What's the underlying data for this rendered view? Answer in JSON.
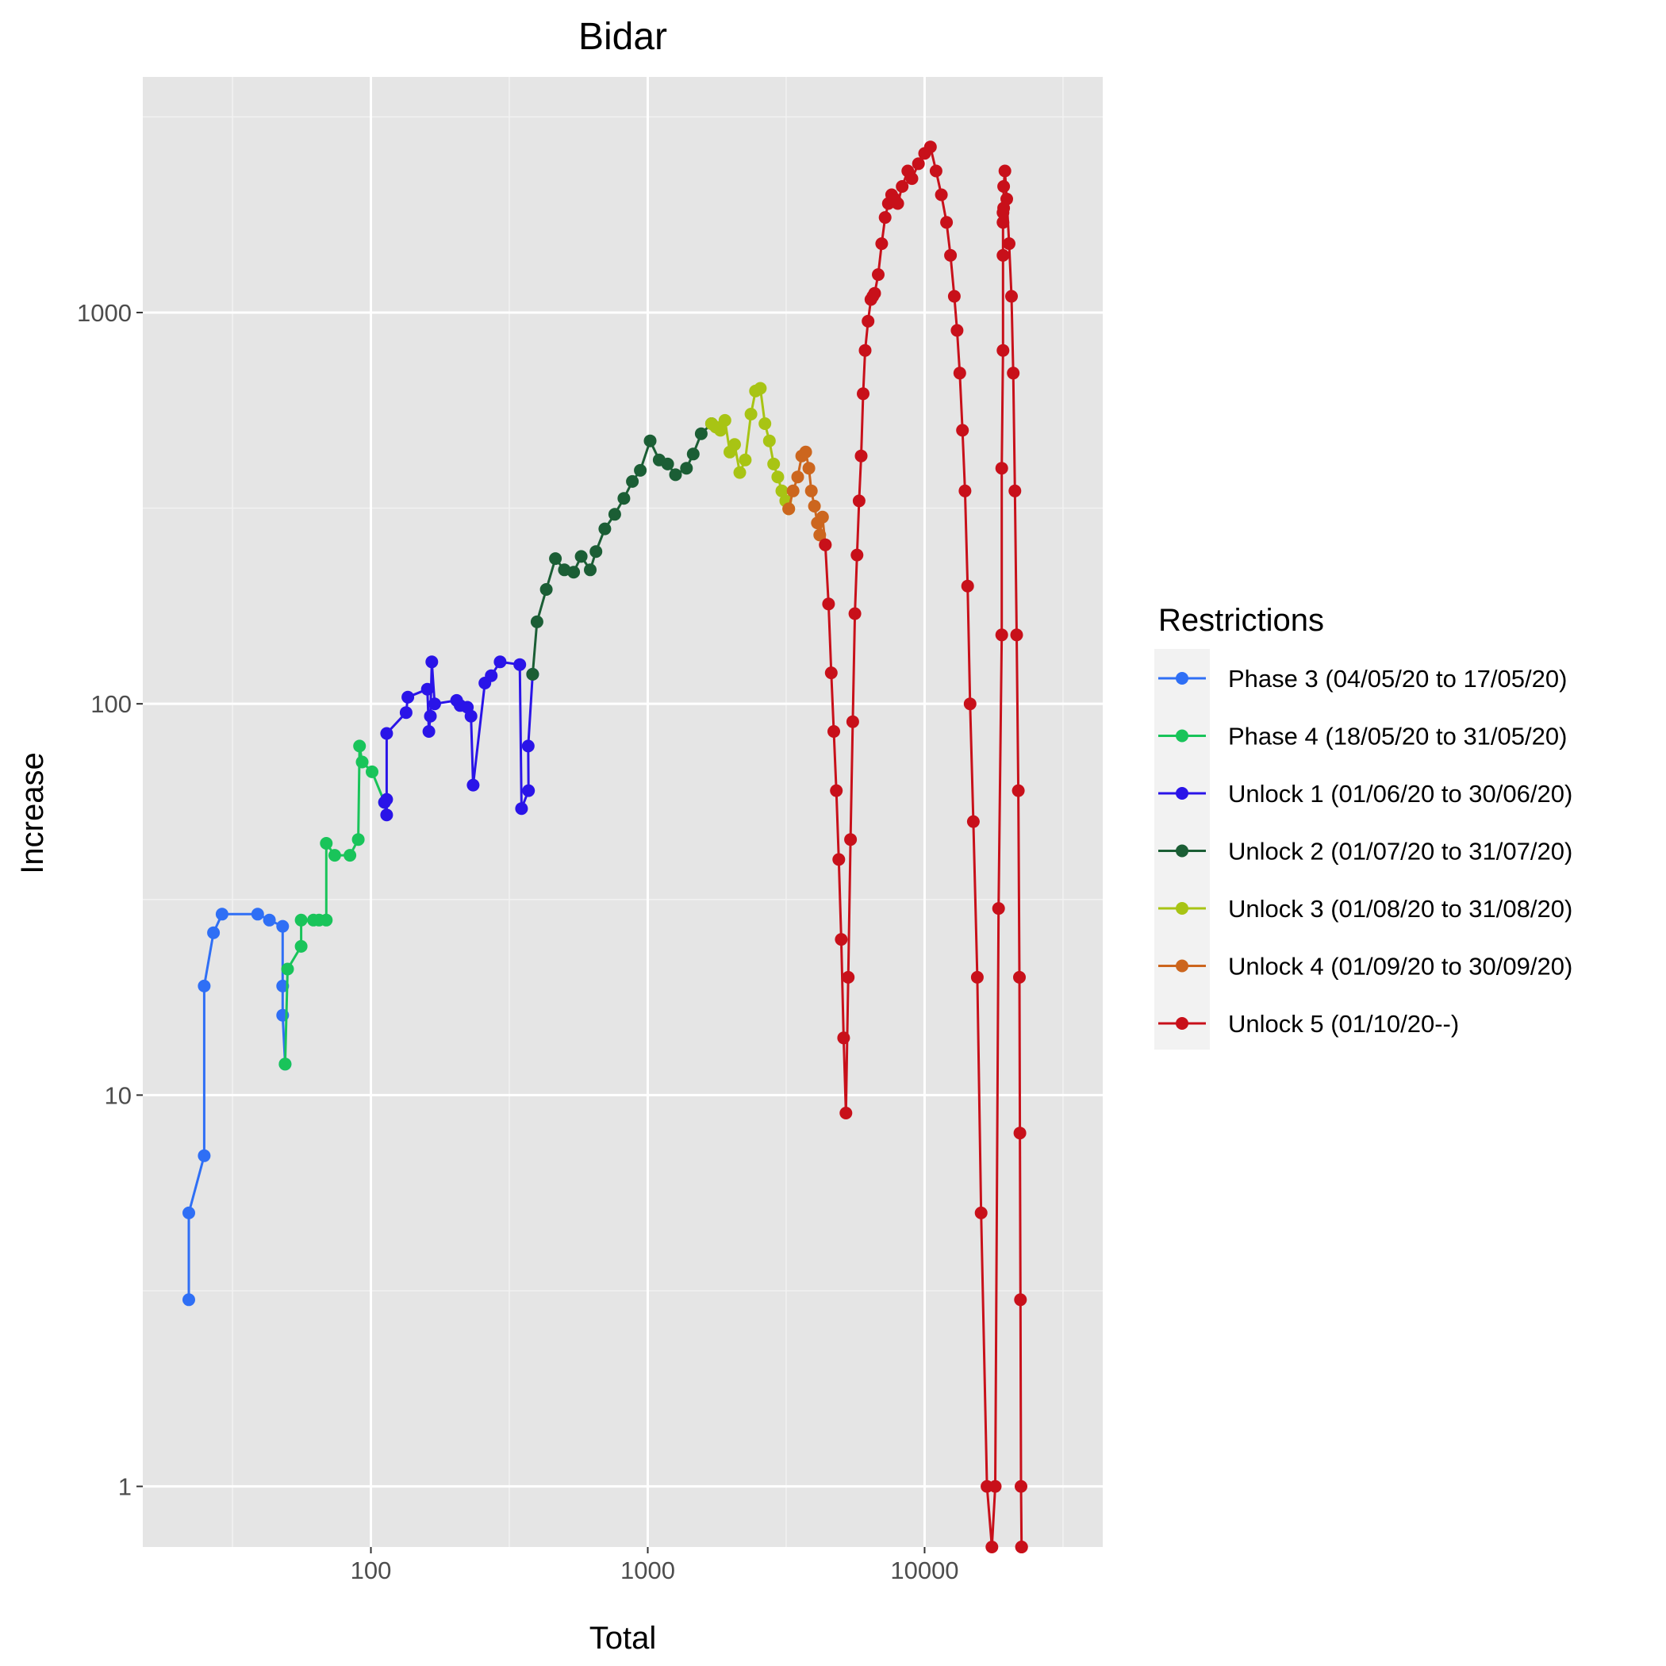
{
  "chart_data": {
    "type": "line",
    "title": "Bidar",
    "xlabel": "Total",
    "ylabel": "Increase",
    "x_scale": "log10",
    "y_scale": "log10",
    "xlim": [
      15,
      44000
    ],
    "ylim": [
      0.7,
      4000
    ],
    "x_ticks": [
      100,
      1000,
      10000
    ],
    "x_tick_labels": [
      "100",
      "1000",
      "10000"
    ],
    "y_ticks": [
      1,
      10,
      100,
      1000
    ],
    "y_tick_labels": [
      "1",
      "10",
      "100",
      "1000"
    ],
    "grid": true,
    "background": "#e5e5e5",
    "legend": {
      "title": "Restrictions",
      "position": "right"
    },
    "series": [
      {
        "name": "Phase 3 (04/05/20 to 17/05/20)",
        "color": "#2f6ff5",
        "x": [
          22,
          22,
          25,
          25,
          27,
          29,
          39,
          43,
          48,
          48,
          48,
          49
        ],
        "y": [
          3,
          5,
          7,
          19,
          26,
          29,
          29,
          28,
          27,
          19,
          16,
          12
        ]
      },
      {
        "name": "Phase 4 (18/05/20 to 31/05/20)",
        "color": "#19c45a",
        "x": [
          49,
          50,
          56,
          56,
          62,
          65,
          69,
          69,
          74,
          84,
          90,
          91,
          93,
          101,
          112
        ],
        "y": [
          12,
          21,
          24,
          28,
          28,
          28,
          28,
          44,
          41,
          41,
          45,
          78,
          71,
          67,
          56
        ]
      },
      {
        "name": "Unlock 1 (01/06/20 to 30/06/20)",
        "color": "#2a14e8",
        "x": [
          112,
          114,
          114,
          114,
          134,
          136,
          160,
          162,
          164,
          166,
          170,
          204,
          210,
          223,
          230,
          234,
          258,
          272,
          293,
          345,
          350,
          371,
          370,
          384
        ],
        "y": [
          56,
          52,
          57,
          84,
          95,
          104,
          109,
          85,
          93,
          128,
          100,
          102,
          99,
          98,
          93,
          62,
          113,
          118,
          128,
          126,
          54,
          60,
          78,
          119
        ]
      },
      {
        "name": "Unlock 2 (01/07/20 to 31/07/20)",
        "color": "#1b5e35",
        "x": [
          384,
          398,
          430,
          464,
          500,
          540,
          575,
          620,
          650,
          700,
          760,
          820,
          880,
          940,
          1020,
          1100,
          1180,
          1260,
          1380,
          1460,
          1560,
          1700
        ],
        "y": [
          119,
          162,
          196,
          235,
          220,
          217,
          238,
          220,
          245,
          280,
          305,
          335,
          370,
          395,
          470,
          420,
          410,
          385,
          400,
          435,
          490,
          520
        ]
      },
      {
        "name": "Unlock 3 (01/08/20 to 31/08/20)",
        "color": "#a8c414",
        "x": [
          1700,
          1760,
          1830,
          1900,
          1980,
          2060,
          2150,
          2250,
          2360,
          2450,
          2550,
          2650,
          2750,
          2850,
          2950,
          3050,
          3150,
          3230
        ],
        "y": [
          520,
          510,
          500,
          530,
          440,
          460,
          390,
          420,
          550,
          630,
          640,
          520,
          470,
          410,
          380,
          350,
          330,
          315
        ]
      },
      {
        "name": "Unlock 4 (01/09/20 to 30/09/20)",
        "color": "#cc661e",
        "x": [
          3230,
          3350,
          3480,
          3600,
          3720,
          3820,
          3900,
          4000,
          4100,
          4180,
          4280,
          4380
        ],
        "y": [
          315,
          350,
          380,
          430,
          440,
          400,
          350,
          320,
          290,
          270,
          300,
          255
        ]
      },
      {
        "name": "Unlock 5 (01/10/20--)",
        "color": "#c8101a",
        "x": [
          4380,
          4500,
          4600,
          4700,
          4800,
          4900,
          5000,
          5100,
          5200,
          5300,
          5400,
          5500,
          5600,
          5700,
          5800,
          5900,
          6000,
          6100,
          6250,
          6400,
          6500,
          6600,
          6800,
          7000,
          7200,
          7400,
          7600,
          7800,
          8000,
          8300,
          8700,
          9000,
          9500,
          10000,
          10500,
          11000,
          11500,
          12000,
          12400,
          12800,
          13100,
          13400,
          13700,
          14000,
          14300,
          14600,
          15000,
          15500,
          16000,
          16800,
          17500,
          18000,
          18500,
          19000,
          19000,
          19200,
          19200,
          19200,
          19200,
          19300,
          19300,
          19500,
          19800,
          20200,
          20600,
          20900,
          21200,
          21500,
          21800,
          22000,
          22100,
          22200,
          22300,
          22400,
          22400
        ],
        "y": [
          255,
          180,
          120,
          85,
          60,
          40,
          25,
          14,
          9,
          20,
          45,
          90,
          170,
          240,
          330,
          430,
          620,
          800,
          950,
          1080,
          1100,
          1120,
          1250,
          1500,
          1750,
          1900,
          2000,
          1950,
          1900,
          2100,
          2300,
          2200,
          2400,
          2550,
          2650,
          2300,
          2000,
          1700,
          1400,
          1100,
          900,
          700,
          500,
          350,
          200,
          100,
          50,
          20,
          5,
          1,
          0.7,
          1,
          30,
          150,
          400,
          800,
          1400,
          1700,
          1800,
          1850,
          2100,
          2300,
          1950,
          1500,
          1100,
          700,
          350,
          150,
          60,
          20,
          8,
          3,
          1,
          0.7,
          0.7
        ]
      }
    ]
  }
}
